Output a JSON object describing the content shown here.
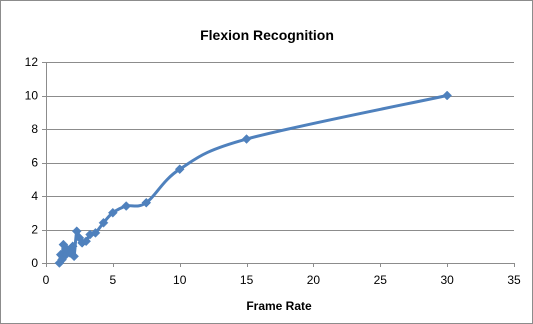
{
  "chart_data": {
    "type": "scatter",
    "title": "Flexion Recognition",
    "xlabel": "Frame Rate",
    "ylabel": "",
    "xlim": [
      0,
      35
    ],
    "ylim": [
      0,
      12
    ],
    "xticks": [
      0,
      5,
      10,
      15,
      20,
      25,
      30,
      35
    ],
    "yticks": [
      0,
      2,
      4,
      6,
      8,
      10,
      12
    ],
    "grid": "horizontal",
    "legend": "none",
    "series": [
      {
        "color": "#4f81bd",
        "marker": "diamond",
        "line": "smoothed",
        "points": [
          {
            "x": 1.0,
            "y": 0.0
          },
          {
            "x": 1.1,
            "y": 0.5
          },
          {
            "x": 1.2,
            "y": 0.2
          },
          {
            "x": 1.3,
            "y": 1.1
          },
          {
            "x": 1.5,
            "y": 0.5
          },
          {
            "x": 1.6,
            "y": 0.8
          },
          {
            "x": 1.8,
            "y": 0.6
          },
          {
            "x": 2.0,
            "y": 1.0
          },
          {
            "x": 2.1,
            "y": 0.4
          },
          {
            "x": 2.3,
            "y": 1.9
          },
          {
            "x": 2.5,
            "y": 1.5
          },
          {
            "x": 2.7,
            "y": 1.2
          },
          {
            "x": 3.0,
            "y": 1.3
          },
          {
            "x": 3.3,
            "y": 1.7
          },
          {
            "x": 3.7,
            "y": 1.8
          },
          {
            "x": 4.3,
            "y": 2.4
          },
          {
            "x": 5.0,
            "y": 3.0
          },
          {
            "x": 6.0,
            "y": 3.4
          },
          {
            "x": 7.5,
            "y": 3.6
          },
          {
            "x": 10.0,
            "y": 5.6
          },
          {
            "x": 15.0,
            "y": 7.4
          },
          {
            "x": 30.0,
            "y": 10.0
          }
        ]
      }
    ]
  }
}
